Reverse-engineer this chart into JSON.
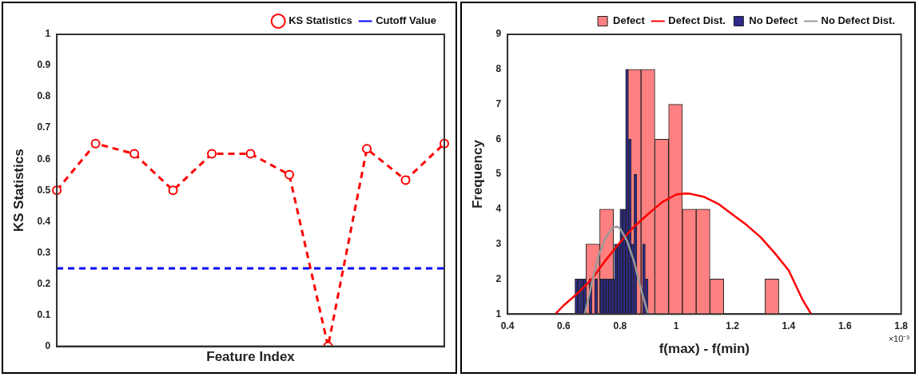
{
  "chart_data": [
    {
      "type": "line",
      "xlabel": "Feature Index",
      "ylabel": "KS Statistics",
      "categories": [
        null,
        null,
        null,
        null,
        null,
        null,
        null,
        null,
        null,
        null,
        null
      ],
      "ylim": [
        0,
        1
      ],
      "yticks": [
        0,
        0.1,
        0.2,
        0.3,
        0.4,
        0.5,
        0.6,
        0.7,
        0.8,
        0.9,
        1
      ],
      "legend": "top right",
      "tick_labels": "y",
      "series": [
        {
          "name": "KS Statistics",
          "color": "#ff0000",
          "marker": "circle",
          "line_style": "dashed",
          "values": [
            0.5,
            0.65,
            0.617,
            0.5,
            0.617,
            0.617,
            0.55,
            0,
            0.633,
            0.533,
            0.65
          ]
        },
        {
          "name": "Cutoff Value",
          "color": "#0000ff",
          "marker": "none",
          "line_style": "dashed",
          "values": [
            0.25,
            0.25,
            0.25,
            0.25,
            0.25,
            0.25,
            0.25,
            0.25,
            0.25,
            0.25,
            0.25
          ]
        }
      ]
    },
    {
      "type": "histogram",
      "xlabel": "f(max) - f(min)",
      "ylabel": "Frequency",
      "xlim": [
        0.4,
        1.8
      ],
      "xticks": [
        0.4,
        0.6,
        0.8,
        1,
        1.2,
        1.4,
        1.6,
        1.8
      ],
      "ylim": [
        1,
        9
      ],
      "yticks": [
        1,
        2,
        3,
        4,
        5,
        6,
        7,
        8,
        9
      ],
      "legend": "top right",
      "annotations": [
        "×10⁻³"
      ],
      "series": [
        {
          "name": "Defect",
          "color": "#ff8080",
          "bins": [
            0.679,
            0.728,
            0.777,
            0.826,
            0.875,
            0.924,
            0.973,
            1.022,
            1.071,
            1.12,
            1.169,
            1.218,
            1.267,
            1.316,
            1.365
          ],
          "values": [
            3,
            4,
            null,
            8,
            8,
            6,
            7,
            4,
            4,
            2,
            null,
            null,
            null,
            2
          ]
        },
        {
          "name": "Defect Dist.",
          "type": "line",
          "color": "#ff0000",
          "x": [
            0.57,
            0.6,
            0.65,
            0.7,
            0.75,
            0.8,
            0.85,
            0.9,
            0.95,
            1,
            1.03,
            1.05,
            1.1,
            1.15,
            1.2,
            1.25,
            1.3,
            1.35,
            1.4,
            1.45,
            1.48
          ],
          "values": [
            1,
            1.25,
            1.6,
            2,
            2.55,
            3.05,
            3.5,
            3.86,
            4.2,
            4.42,
            4.45,
            4.44,
            4.35,
            4.15,
            3.85,
            3.55,
            3.2,
            2.75,
            2.25,
            1.4,
            1
          ]
        },
        {
          "name": "No Defect",
          "color": "#2e2a8a",
          "bins": [
            0.64,
            0.65,
            0.66,
            0.67,
            0.68,
            0.69,
            0.7,
            0.71,
            0.72,
            0.73,
            0.74,
            0.75,
            0.76,
            0.77,
            0.78,
            0.79,
            0.8,
            0.81,
            0.82,
            0.83,
            0.84,
            0.85,
            0.86,
            0.87,
            0.88,
            0.89,
            0.9
          ],
          "values": [
            2,
            2,
            2,
            2,
            null,
            2,
            null,
            2,
            null,
            2,
            2,
            2,
            2,
            2,
            3,
            3,
            4,
            4,
            8,
            6,
            3,
            5,
            null,
            null,
            3,
            2
          ]
        },
        {
          "name": "No Defect Dist.",
          "type": "line",
          "color": "#999999",
          "x": [
            0.675,
            0.7,
            0.725,
            0.75,
            0.775,
            0.79,
            0.8,
            0.825,
            0.85,
            0.875,
            0.9
          ],
          "values": [
            1,
            1.9,
            2.7,
            3.2,
            3.48,
            3.5,
            3.45,
            3.1,
            2.5,
            1.7,
            1
          ]
        }
      ]
    }
  ]
}
